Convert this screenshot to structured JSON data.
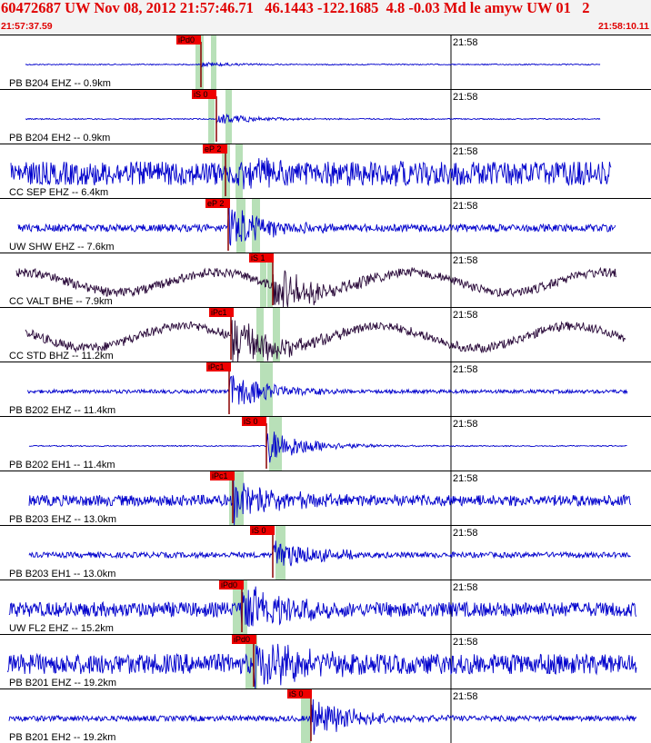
{
  "header": {
    "title": "60472687 UW Nov 08, 2012 21:57:46.71   46.1443 -122.1685  4.8 -0.03 Md le amyw UW 01   2",
    "start_time": "21:57:37.59",
    "end_time": "21:58:10.11"
  },
  "colors": {
    "header_text": "#e00000",
    "trace_blue": "#0000cc",
    "trace_dark": "#2a0a3a",
    "pick_box": "#ee0000",
    "pick_window": "#b8e0b8"
  },
  "time_marker_label": "21:58",
  "traces": [
    {
      "label": "PB B204 EHZ -- 0.9km",
      "pick": "iPd0",
      "color": "blue",
      "type": "event",
      "amp": 2,
      "noise": 0.6
    },
    {
      "label": "PB B204 EH2 -- 0.9km",
      "pick": "iS 0",
      "color": "blue",
      "type": "event",
      "amp": 5,
      "noise": 0.6
    },
    {
      "label": "CC SEP EHZ -- 6.4km",
      "pick": "eP 2",
      "color": "blue",
      "type": "noisy",
      "amp": 18,
      "noise": 13
    },
    {
      "label": "UW SHW EHZ -- 7.6km",
      "pick": "eP 2",
      "color": "blue",
      "type": "event",
      "amp": 20,
      "noise": 4
    },
    {
      "label": "CC VALT BHE -- 7.9km",
      "pick": "iS 1",
      "color": "dark",
      "type": "wave",
      "amp": 20,
      "noise": 5
    },
    {
      "label": "CC STD BHZ -- 11.2km",
      "pick": "iPc1",
      "color": "dark",
      "type": "wave",
      "amp": 22,
      "noise": 5
    },
    {
      "label": "PB B202 EHZ -- 11.4km",
      "pick": "iPc1",
      "color": "blue",
      "type": "event",
      "amp": 16,
      "noise": 2
    },
    {
      "label": "PB B202 EH1 -- 11.4km",
      "pick": "iS 0",
      "color": "blue",
      "type": "event",
      "amp": 16,
      "noise": 0.6
    },
    {
      "label": "PB B203 EHZ -- 13.0km",
      "pick": "iPc1",
      "color": "blue",
      "type": "event",
      "amp": 20,
      "noise": 6
    },
    {
      "label": "PB B203 EH1 -- 13.0km",
      "pick": "iS 0",
      "color": "blue",
      "type": "event",
      "amp": 15,
      "noise": 3
    },
    {
      "label": "UW FL2 EHZ -- 15.2km",
      "pick": "iPd0",
      "color": "blue",
      "type": "event",
      "amp": 22,
      "noise": 8
    },
    {
      "label": "PB B201 EHZ -- 19.2km",
      "pick": "iPd0",
      "color": "blue",
      "type": "event",
      "amp": 24,
      "noise": 11
    },
    {
      "label": "PB B201 EH2 -- 19.2km",
      "pick": "iS 0",
      "color": "blue",
      "type": "event",
      "amp": 18,
      "noise": 3
    }
  ]
}
